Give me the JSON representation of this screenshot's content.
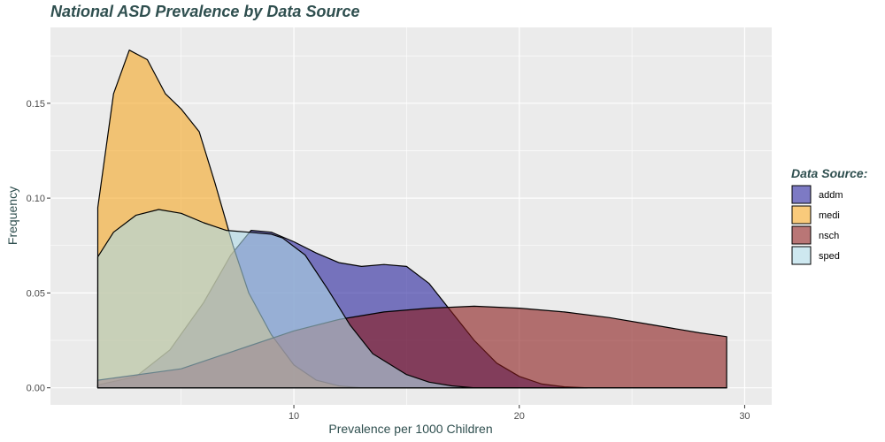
{
  "chart_data": {
    "type": "area",
    "title": "National ASD Prevalence by Data Source",
    "xlabel": "Prevalence per 1000 Children",
    "ylabel": "Frequency",
    "xlim": [
      -0.8,
      31.2
    ],
    "ylim": [
      -0.009,
      0.19
    ],
    "x_ticks": [
      10,
      20,
      30
    ],
    "y_ticks": [
      0.0,
      0.05,
      0.1,
      0.15
    ],
    "x_tick_labels": [
      "10",
      "20",
      "30"
    ],
    "y_tick_labels": [
      "0.00",
      "0.05",
      "0.10",
      "0.15"
    ],
    "grid": true,
    "legend": {
      "title": "Data Source:",
      "position": "right"
    },
    "series": [
      {
        "name": "addm",
        "color": "#26219c",
        "points": [
          [
            1.3,
            0.0015
          ],
          [
            3,
            0.006
          ],
          [
            4.5,
            0.02
          ],
          [
            6,
            0.045
          ],
          [
            7.2,
            0.07
          ],
          [
            8.1,
            0.083
          ],
          [
            9,
            0.082
          ],
          [
            10,
            0.077
          ],
          [
            11,
            0.071
          ],
          [
            12,
            0.066
          ],
          [
            13,
            0.064
          ],
          [
            14,
            0.065
          ],
          [
            15,
            0.064
          ],
          [
            16,
            0.055
          ],
          [
            17,
            0.04
          ],
          [
            18,
            0.025
          ],
          [
            19,
            0.013
          ],
          [
            20,
            0.006
          ],
          [
            21,
            0.002
          ],
          [
            22,
            0.0005
          ],
          [
            23,
            0.0
          ]
        ]
      },
      {
        "name": "medi",
        "color": "#f5a623",
        "points": [
          [
            1.3,
            0.095
          ],
          [
            2,
            0.155
          ],
          [
            2.7,
            0.178
          ],
          [
            3.5,
            0.173
          ],
          [
            4.3,
            0.155
          ],
          [
            5,
            0.147
          ],
          [
            5.8,
            0.135
          ],
          [
            6.5,
            0.108
          ],
          [
            7.3,
            0.075
          ],
          [
            8,
            0.05
          ],
          [
            9,
            0.028
          ],
          [
            10,
            0.012
          ],
          [
            11,
            0.004
          ],
          [
            12,
            0.001
          ],
          [
            13,
            0.0
          ],
          [
            29.2,
            0.0
          ]
        ]
      },
      {
        "name": "nsch",
        "color": "#8b1a1a",
        "points": [
          [
            1.3,
            0.004
          ],
          [
            5,
            0.01
          ],
          [
            8,
            0.022
          ],
          [
            10,
            0.03
          ],
          [
            12,
            0.036
          ],
          [
            14,
            0.04
          ],
          [
            16,
            0.042
          ],
          [
            18,
            0.043
          ],
          [
            20,
            0.042
          ],
          [
            22,
            0.04
          ],
          [
            24,
            0.037
          ],
          [
            26,
            0.033
          ],
          [
            28,
            0.029
          ],
          [
            29.2,
            0.027
          ]
        ]
      },
      {
        "name": "sped",
        "color": "#add8e6",
        "points": [
          [
            1.3,
            0.069
          ],
          [
            2,
            0.082
          ],
          [
            3,
            0.091
          ],
          [
            4,
            0.094
          ],
          [
            5,
            0.092
          ],
          [
            6,
            0.087
          ],
          [
            7,
            0.083
          ],
          [
            8,
            0.082
          ],
          [
            9,
            0.081
          ],
          [
            9.5,
            0.079
          ],
          [
            10.5,
            0.07
          ],
          [
            11.5,
            0.052
          ],
          [
            12.5,
            0.033
          ],
          [
            13.5,
            0.018
          ],
          [
            15,
            0.007
          ],
          [
            16,
            0.003
          ],
          [
            17,
            0.001
          ],
          [
            18,
            0.0
          ],
          [
            29.2,
            0.0
          ]
        ]
      }
    ]
  }
}
